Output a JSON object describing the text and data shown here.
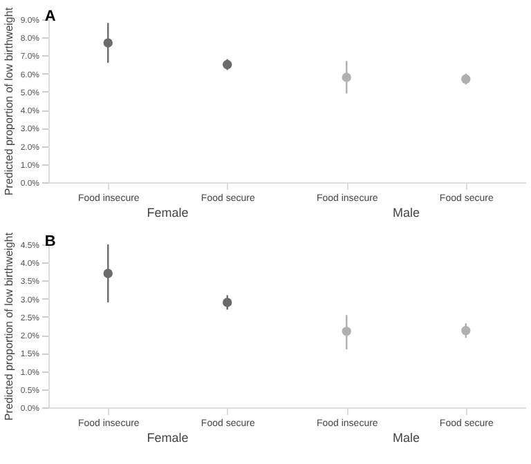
{
  "chart_data": [
    {
      "type": "scatter",
      "title": "A",
      "ylabel": "Predicted proportion of low birthweight",
      "categories": [
        "Food insecure",
        "Food secure",
        "Food insecure",
        "Food secure"
      ],
      "annotations": [
        "Female",
        "Male"
      ],
      "values": [
        7.7,
        6.5,
        5.8,
        5.7
      ],
      "errors": [
        [
          6.6,
          8.8
        ],
        [
          6.2,
          6.8
        ],
        [
          4.9,
          6.7
        ],
        [
          5.4,
          6.0
        ]
      ],
      "colors": [
        "#6b6b6b",
        "#6b6b6b",
        "#b0b0b0",
        "#b0b0b0"
      ],
      "marker": "circle",
      "ylim": [
        0,
        9
      ],
      "yticks": [
        {
          "value": 0,
          "label": "0.0%"
        },
        {
          "value": 1,
          "label": "1.0%"
        },
        {
          "value": 2,
          "label": "2.0%"
        },
        {
          "value": 3,
          "label": "3.0%"
        },
        {
          "value": 4,
          "label": "4.0%"
        },
        {
          "value": 5,
          "label": "5.0%"
        },
        {
          "value": 6,
          "label": "6.0%"
        },
        {
          "value": 7,
          "label": "7.0%"
        },
        {
          "value": 8,
          "label": "8.0%"
        },
        {
          "value": 9,
          "label": "9.0%"
        }
      ]
    },
    {
      "type": "scatter",
      "title": "B",
      "ylabel": "Predicted proportion of low birthweight",
      "categories": [
        "Food insecure",
        "Food secure",
        "Food insecure",
        "Food secure"
      ],
      "annotations": [
        "Female",
        "Male"
      ],
      "values": [
        3.7,
        2.9,
        2.1,
        2.12
      ],
      "errors": [
        [
          2.9,
          4.5
        ],
        [
          2.7,
          3.1
        ],
        [
          1.6,
          2.55
        ],
        [
          1.92,
          2.32
        ]
      ],
      "colors": [
        "#6b6b6b",
        "#6b6b6b",
        "#b0b0b0",
        "#b0b0b0"
      ],
      "marker": "circle",
      "ylim": [
        0,
        4.5
      ],
      "yticks": [
        {
          "value": 0,
          "label": "0.0%"
        },
        {
          "value": 0.5,
          "label": "0.5%"
        },
        {
          "value": 1,
          "label": "1.0%"
        },
        {
          "value": 1.5,
          "label": "1.5%"
        },
        {
          "value": 2,
          "label": "2.0%"
        },
        {
          "value": 2.5,
          "label": "2.5%"
        },
        {
          "value": 3,
          "label": "3.0%"
        },
        {
          "value": 3.5,
          "label": "3.5%"
        },
        {
          "value": 4,
          "label": "4.0%"
        },
        {
          "value": 4.5,
          "label": "4.5%"
        }
      ]
    }
  ]
}
